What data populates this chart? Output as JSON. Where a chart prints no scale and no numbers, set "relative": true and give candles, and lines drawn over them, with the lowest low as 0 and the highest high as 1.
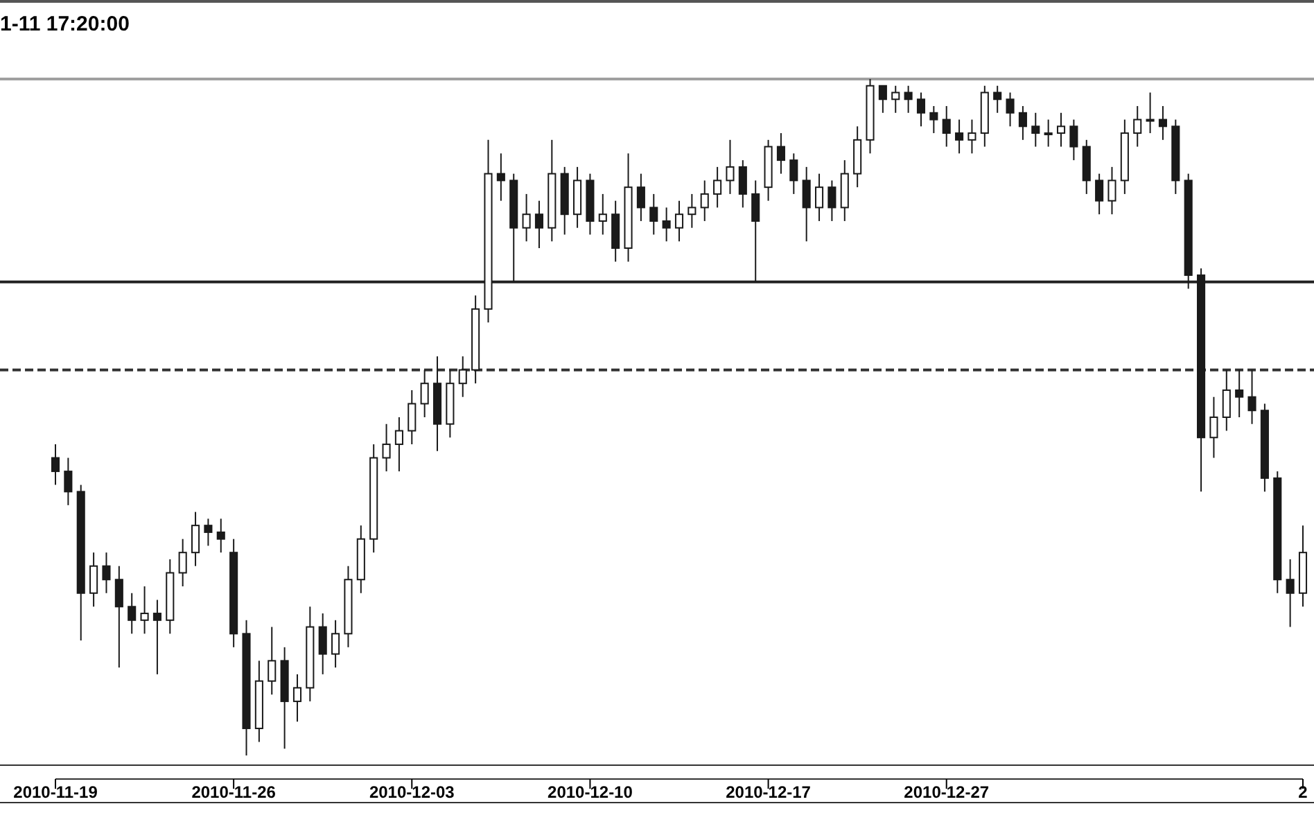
{
  "chart_data": {
    "type": "candlestick",
    "title": "1-11 17:20:00",
    "relative": true,
    "color": "#1a1a1a",
    "categories": [
      "2010-11-19",
      null,
      null,
      null,
      null,
      null,
      null,
      null,
      null,
      null,
      null,
      null,
      null,
      null,
      "2010-11-26",
      null,
      null,
      null,
      null,
      null,
      null,
      null,
      null,
      null,
      null,
      null,
      null,
      null,
      "2010-12-03",
      null,
      null,
      null,
      null,
      null,
      null,
      null,
      null,
      null,
      null,
      null,
      null,
      null,
      "2010-12-10",
      null,
      null,
      null,
      null,
      null,
      null,
      null,
      null,
      null,
      null,
      null,
      null,
      null,
      "2010-12-17",
      null,
      null,
      null,
      null,
      null,
      null,
      null,
      null,
      null,
      null,
      null,
      null,
      null,
      "2010-12-27",
      null,
      null,
      null,
      null,
      null,
      null,
      null,
      null,
      null,
      null,
      null,
      null,
      null,
      null,
      null,
      null,
      null,
      null,
      null,
      null,
      null,
      null,
      null,
      null,
      null,
      null,
      null,
      "2"
    ],
    "ohlc": [
      [
        0.44,
        0.46,
        0.4,
        0.42
      ],
      [
        0.42,
        0.44,
        0.37,
        0.39
      ],
      [
        0.39,
        0.4,
        0.17,
        0.24
      ],
      [
        0.24,
        0.3,
        0.22,
        0.28
      ],
      [
        0.28,
        0.3,
        0.24,
        0.26
      ],
      [
        0.26,
        0.28,
        0.13,
        0.22
      ],
      [
        0.22,
        0.24,
        0.18,
        0.2
      ],
      [
        0.2,
        0.25,
        0.18,
        0.21
      ],
      [
        0.21,
        0.23,
        0.12,
        0.2
      ],
      [
        0.2,
        0.29,
        0.18,
        0.27
      ],
      [
        0.27,
        0.32,
        0.25,
        0.3
      ],
      [
        0.3,
        0.36,
        0.28,
        0.34
      ],
      [
        0.34,
        0.35,
        0.31,
        0.33
      ],
      [
        0.33,
        0.35,
        0.3,
        0.32
      ],
      [
        0.3,
        0.32,
        0.16,
        0.18
      ],
      [
        0.18,
        0.2,
        0,
        0.04
      ],
      [
        0.04,
        0.14,
        0.02,
        0.11
      ],
      [
        0.11,
        0.19,
        0.09,
        0.14
      ],
      [
        0.14,
        0.16,
        0.01,
        0.08
      ],
      [
        0.08,
        0.12,
        0.05,
        0.1
      ],
      [
        0.1,
        0.22,
        0.08,
        0.19
      ],
      [
        0.19,
        0.21,
        0.12,
        0.15
      ],
      [
        0.15,
        0.2,
        0.13,
        0.18
      ],
      [
        0.18,
        0.28,
        0.16,
        0.26
      ],
      [
        0.26,
        0.34,
        0.24,
        0.32
      ],
      [
        0.32,
        0.46,
        0.3,
        0.44
      ],
      [
        0.44,
        0.49,
        0.42,
        0.46
      ],
      [
        0.46,
        0.5,
        0.42,
        0.48
      ],
      [
        0.48,
        0.54,
        0.46,
        0.52
      ],
      [
        0.52,
        0.57,
        0.5,
        0.55
      ],
      [
        0.55,
        0.59,
        0.45,
        0.49
      ],
      [
        0.49,
        0.57,
        0.47,
        0.55
      ],
      [
        0.55,
        0.59,
        0.53,
        0.57
      ],
      [
        0.57,
        0.68,
        0.55,
        0.66
      ],
      [
        0.66,
        0.91,
        0.64,
        0.86
      ],
      [
        0.86,
        0.89,
        0.82,
        0.85
      ],
      [
        0.85,
        0.86,
        0.7,
        0.78
      ],
      [
        0.78,
        0.83,
        0.76,
        0.8
      ],
      [
        0.8,
        0.82,
        0.75,
        0.78
      ],
      [
        0.78,
        0.91,
        0.76,
        0.86
      ],
      [
        0.86,
        0.87,
        0.77,
        0.8
      ],
      [
        0.8,
        0.87,
        0.78,
        0.85
      ],
      [
        0.85,
        0.86,
        0.77,
        0.79
      ],
      [
        0.79,
        0.83,
        0.77,
        0.8
      ],
      [
        0.8,
        0.82,
        0.73,
        0.75
      ],
      [
        0.75,
        0.89,
        0.73,
        0.84
      ],
      [
        0.84,
        0.86,
        0.79,
        0.81
      ],
      [
        0.81,
        0.83,
        0.77,
        0.79
      ],
      [
        0.79,
        0.81,
        0.76,
        0.78
      ],
      [
        0.78,
        0.82,
        0.76,
        0.8
      ],
      [
        0.8,
        0.83,
        0.78,
        0.81
      ],
      [
        0.81,
        0.85,
        0.79,
        0.83
      ],
      [
        0.83,
        0.87,
        0.81,
        0.85
      ],
      [
        0.85,
        0.91,
        0.83,
        0.87
      ],
      [
        0.87,
        0.88,
        0.81,
        0.83
      ],
      [
        0.83,
        0.85,
        0.7,
        0.79
      ],
      [
        0.84,
        0.91,
        0.82,
        0.9
      ],
      [
        0.9,
        0.92,
        0.86,
        0.88
      ],
      [
        0.88,
        0.89,
        0.83,
        0.85
      ],
      [
        0.85,
        0.87,
        0.76,
        0.81
      ],
      [
        0.81,
        0.86,
        0.79,
        0.84
      ],
      [
        0.84,
        0.85,
        0.79,
        0.81
      ],
      [
        0.81,
        0.88,
        0.79,
        0.86
      ],
      [
        0.86,
        0.93,
        0.84,
        0.91
      ],
      [
        0.91,
        1,
        0.89,
        0.99
      ],
      [
        0.99,
        0.99,
        0.95,
        0.97
      ],
      [
        0.97,
        0.99,
        0.95,
        0.98
      ],
      [
        0.98,
        0.99,
        0.95,
        0.97
      ],
      [
        0.97,
        0.98,
        0.93,
        0.95
      ],
      [
        0.95,
        0.96,
        0.92,
        0.94
      ],
      [
        0.94,
        0.96,
        0.9,
        0.92
      ],
      [
        0.92,
        0.94,
        0.89,
        0.91
      ],
      [
        0.91,
        0.94,
        0.89,
        0.92
      ],
      [
        0.92,
        0.99,
        0.9,
        0.98
      ],
      [
        0.98,
        0.99,
        0.95,
        0.97
      ],
      [
        0.97,
        0.98,
        0.93,
        0.95
      ],
      [
        0.95,
        0.96,
        0.91,
        0.93
      ],
      [
        0.93,
        0.95,
        0.9,
        0.92
      ],
      [
        0.92,
        0.94,
        0.9,
        0.92
      ],
      [
        0.92,
        0.95,
        0.9,
        0.93
      ],
      [
        0.93,
        0.94,
        0.88,
        0.9
      ],
      [
        0.9,
        0.91,
        0.83,
        0.85
      ],
      [
        0.85,
        0.86,
        0.8,
        0.82
      ],
      [
        0.82,
        0.87,
        0.8,
        0.85
      ],
      [
        0.85,
        0.94,
        0.83,
        0.92
      ],
      [
        0.92,
        0.96,
        0.9,
        0.94
      ],
      [
        0.94,
        0.98,
        0.92,
        0.94
      ],
      [
        0.94,
        0.96,
        0.91,
        0.93
      ],
      [
        0.93,
        0.94,
        0.83,
        0.85
      ],
      [
        0.85,
        0.86,
        0.69,
        0.71
      ],
      [
        0.71,
        0.72,
        0.39,
        0.47
      ],
      [
        0.47,
        0.53,
        0.44,
        0.5
      ],
      [
        0.5,
        0.57,
        0.48,
        0.54
      ],
      [
        0.54,
        0.57,
        0.5,
        0.53
      ],
      [
        0.53,
        0.57,
        0.49,
        0.51
      ],
      [
        0.51,
        0.52,
        0.39,
        0.41
      ],
      [
        0.41,
        0.42,
        0.24,
        0.26
      ],
      [
        0.26,
        0.29,
        0.19,
        0.24
      ],
      [
        0.24,
        0.34,
        0.22,
        0.3
      ]
    ],
    "ref_lines": [
      {
        "axis": "y",
        "value": 1.0,
        "color": "#a0a0a0",
        "line_style": "solid"
      },
      {
        "axis": "y",
        "value": 0.7,
        "color": "#222222",
        "line_style": "solid"
      },
      {
        "axis": "y",
        "value": 0.57,
        "color": "#333333",
        "line_style": "dashed"
      }
    ]
  }
}
